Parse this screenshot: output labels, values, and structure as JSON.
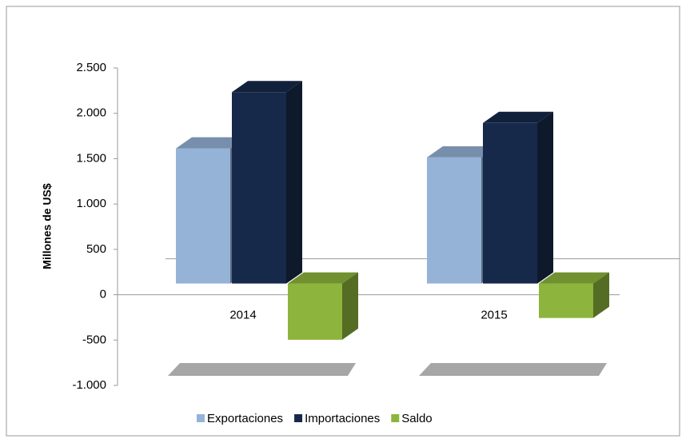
{
  "chart_data": {
    "type": "bar3d",
    "y_label": "Millones de US$",
    "categories": [
      "2014",
      "2015"
    ],
    "series": [
      {
        "name": "Exportaciones",
        "color": "#95b3d7",
        "values": [
          1490,
          1390
        ]
      },
      {
        "name": "Importaciones",
        "color": "#17294a",
        "values": [
          2110,
          1770
        ]
      },
      {
        "name": "Saldo",
        "color": "#8db43c",
        "values": [
          -620,
          -380
        ]
      }
    ],
    "ylim": [
      -1000,
      2500
    ],
    "yticks": [
      {
        "value": -1000,
        "label": "-1.000"
      },
      -500,
      0,
      500,
      {
        "value": 1000,
        "label": "1.000"
      },
      {
        "value": 1500,
        "label": "1.500"
      },
      {
        "value": 2000,
        "label": "2.000"
      },
      {
        "value": 2500,
        "label": "2.500"
      }
    ],
    "legend": "bottom"
  }
}
